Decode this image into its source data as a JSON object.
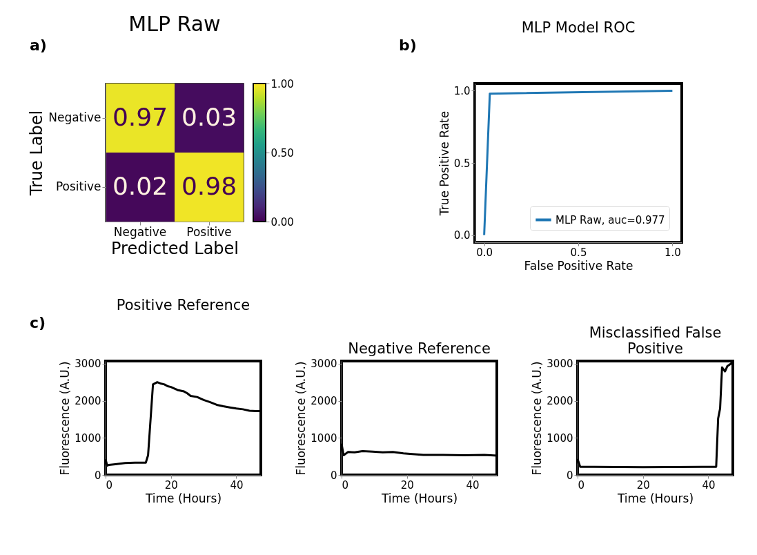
{
  "chart_data": [
    {
      "type": "heatmap",
      "title": "MLP Raw",
      "xlabel": "Predicted Label",
      "ylabel": "True Label",
      "categories": [
        "Negative",
        "Positive"
      ],
      "y_categories": [
        "Negative",
        "Positive"
      ],
      "cells": [
        [
          0.97,
          0.03
        ],
        [
          0.02,
          0.98
        ]
      ],
      "data_labels": true,
      "clim": [
        0,
        1
      ],
      "cticks": [
        {
          "value": 0,
          "label": "0.00"
        },
        {
          "value": 0.5,
          "label": "0.50"
        },
        {
          "value": 1,
          "label": "1.00"
        }
      ],
      "annotations": [
        "a)"
      ]
    },
    {
      "type": "line",
      "title": "MLP Model ROC",
      "xlabel": "False Positive Rate",
      "ylabel": "True Positive Rate",
      "x": [
        0,
        0.03,
        1
      ],
      "series": [
        {
          "name": "MLP Raw, auc=0.977",
          "color": "#1f77b4",
          "values": [
            0,
            0.98,
            1.0
          ]
        }
      ],
      "xlim": [
        -0.05,
        1.05
      ],
      "ylim": [
        -0.05,
        1.05
      ],
      "xticks": [
        {
          "value": 0,
          "label": "0.0"
        },
        0.5,
        {
          "value": 1,
          "label": "1.0"
        }
      ],
      "yticks": [
        {
          "value": 0,
          "label": "0.0"
        },
        0.5,
        {
          "value": 1,
          "label": "1.0"
        }
      ],
      "legend": "bottom right",
      "annotations": [
        "b)"
      ]
    },
    {
      "type": "line",
      "title": "Positive Reference",
      "xlabel": "Time (Hours)",
      "ylabel": "Fluorescence (A.U.)",
      "x": [
        0,
        0.5,
        1,
        3,
        6,
        9,
        12.3,
        13,
        14,
        14.5,
        15.8,
        17,
        18,
        19,
        20,
        22,
        24,
        25,
        26,
        28,
        30,
        32,
        34,
        36,
        38,
        40,
        42,
        44,
        46,
        47.5
      ],
      "series": [
        {
          "color": "#000000",
          "values": [
            420,
            250,
            270,
            290,
            320,
            330,
            330,
            530,
            1800,
            2440,
            2500,
            2460,
            2440,
            2390,
            2370,
            2290,
            2250,
            2200,
            2130,
            2100,
            2020,
            1960,
            1890,
            1850,
            1820,
            1790,
            1770,
            1730,
            1720,
            1720
          ]
        }
      ],
      "xlim": [
        0,
        47.5
      ],
      "ylim": [
        0,
        3070
      ],
      "xticks": [
        0,
        20,
        40
      ],
      "yticks": [
        0,
        1000,
        2000,
        3000
      ],
      "annotations": [
        "c)"
      ]
    },
    {
      "type": "line",
      "title": "Negative Reference",
      "xlabel": "Time (Hours)",
      "ylabel": "Fluorescence (A.U.)",
      "x": [
        0,
        0.6,
        2,
        4,
        6.4,
        9.5,
        12.6,
        15.7,
        18.9,
        25,
        31,
        37.5,
        43.7,
        47.5
      ],
      "series": [
        {
          "color": "#000000",
          "values": [
            840,
            530,
            620,
            610,
            640,
            630,
            610,
            620,
            580,
            540,
            540,
            530,
            540,
            520
          ]
        }
      ],
      "xlim": [
        0,
        47.5
      ],
      "ylim": [
        0,
        3070
      ],
      "xticks": [
        0,
        20,
        40
      ],
      "yticks": [
        0,
        1000,
        2000,
        3000
      ]
    },
    {
      "type": "line",
      "title": "Misclassified False Positive",
      "xlabel": "Time (Hours)",
      "ylabel": "Fluorescence (A.U.)",
      "x": [
        0,
        0.8,
        5,
        20,
        42.4,
        43,
        43.6,
        44.2,
        45.1,
        45.8,
        46.8,
        47.5
      ],
      "series": [
        {
          "color": "#000000",
          "values": [
            430,
            220,
            220,
            210,
            220,
            1520,
            1790,
            2900,
            2790,
            2930,
            2990,
            3050
          ]
        }
      ],
      "xlim": [
        0,
        47.5
      ],
      "ylim": [
        0,
        3070
      ],
      "xticks": [
        0,
        20,
        40
      ],
      "yticks": [
        0,
        1000,
        2000,
        3000
      ]
    }
  ]
}
